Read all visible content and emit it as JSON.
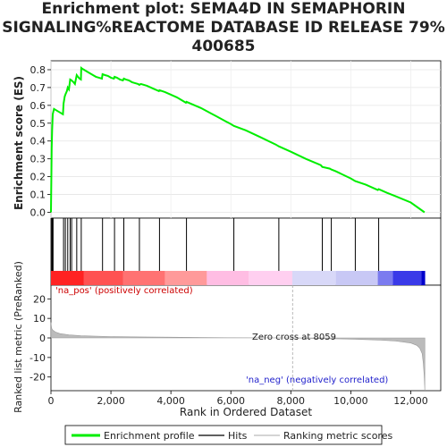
{
  "chart_data": {
    "type": "line",
    "title_lines": [
      "Enrichment plot: SEMA4D IN SEMAPHORIN",
      "SIGNALING%REACTOME DATABASE ID RELEASE 79%",
      "400685"
    ],
    "xlabel": "Rank in Ordered Dataset",
    "top_panel": {
      "ylabel": "Enrichment score (ES)",
      "ylim": [
        0,
        0.85
      ],
      "yticks": [
        "0.0",
        "0.1",
        "0.2",
        "0.3",
        "0.4",
        "0.5",
        "0.6",
        "0.7",
        "0.8"
      ],
      "line_color": "#00ee00",
      "series": [
        {
          "x": [
            0,
            15,
            25,
            40,
            60,
            100,
            150,
            200,
            250,
            300,
            350,
            400,
            420,
            460,
            480,
            530,
            560,
            600,
            640,
            690,
            750,
            800,
            860,
            900,
            950,
            1000,
            1010,
            1050,
            1100,
            1200,
            1300,
            1400,
            1500,
            1600,
            1700,
            1720,
            1800,
            1900,
            2000,
            2100,
            2120,
            2200,
            2300,
            2400,
            2430,
            2500,
            2600,
            2700,
            2800,
            2900,
            2950,
            3000,
            3200,
            3400,
            3600,
            3620,
            3800,
            4000,
            4200,
            4400,
            4500,
            4520,
            4800,
            5000,
            5500,
            6000,
            6100,
            6500,
            7000,
            7500,
            7600,
            8000,
            8500,
            9000,
            9050,
            9300,
            9350,
            9500,
            10000,
            10150,
            10500,
            10900,
            10930,
            11200,
            11500,
            12000,
            12460
          ],
          "y": [
            0.0,
            0.22,
            0.36,
            0.46,
            0.55,
            0.58,
            0.575,
            0.57,
            0.565,
            0.56,
            0.555,
            0.55,
            0.61,
            0.65,
            0.66,
            0.68,
            0.7,
            0.69,
            0.745,
            0.74,
            0.73,
            0.72,
            0.77,
            0.76,
            0.75,
            0.745,
            0.81,
            0.805,
            0.8,
            0.79,
            0.78,
            0.77,
            0.76,
            0.755,
            0.75,
            0.775,
            0.77,
            0.765,
            0.755,
            0.75,
            0.76,
            0.755,
            0.745,
            0.74,
            0.75,
            0.745,
            0.74,
            0.73,
            0.725,
            0.72,
            0.715,
            0.72,
            0.71,
            0.695,
            0.68,
            0.685,
            0.675,
            0.66,
            0.645,
            0.625,
            0.615,
            0.62,
            0.6,
            0.585,
            0.54,
            0.495,
            0.485,
            0.46,
            0.42,
            0.38,
            0.37,
            0.34,
            0.3,
            0.265,
            0.255,
            0.245,
            0.24,
            0.23,
            0.19,
            0.175,
            0.155,
            0.125,
            0.13,
            0.11,
            0.09,
            0.055,
            0.0
          ]
        }
      ]
    },
    "hits_panel": {
      "hit_ranks": [
        30,
        50,
        70,
        420,
        480,
        560,
        640,
        690,
        860,
        1010,
        1720,
        2120,
        2430,
        2950,
        3620,
        4520,
        6100,
        7600,
        9050,
        9350,
        10150,
        10930
      ]
    },
    "bottom_panel": {
      "ylabel": "Ranked list metric (PreRanked)",
      "ylim": [
        -27,
        27
      ],
      "yticks": [
        "20",
        "10",
        "0",
        "-10",
        "-20"
      ],
      "ytick_values": [
        20,
        10,
        0,
        -10,
        -20
      ],
      "metric_profile": {
        "x": [
          0,
          20,
          60,
          150,
          300,
          600,
          1000,
          2000,
          3000,
          4000,
          5000,
          6000,
          7000,
          8059,
          9000,
          10000,
          11000,
          11500,
          12000,
          12200,
          12300,
          12380,
          12420,
          12450,
          12470
        ],
        "y": [
          8,
          5,
          4,
          3,
          2.2,
          1.6,
          1.1,
          0.7,
          0.5,
          0.35,
          0.2,
          0.1,
          0.03,
          0,
          -0.3,
          -0.6,
          -1.1,
          -1.6,
          -2.6,
          -3.8,
          -5.2,
          -8,
          -13,
          -20,
          -27
        ]
      },
      "zero_cross": 8059,
      "zero_cross_label": "Zero cross at 8059",
      "pos_label": "'na_pos' (positively correlated)",
      "neg_label": "'na_neg' (negatively correlated)"
    },
    "xlim": [
      0,
      13000
    ],
    "xticks": [
      "0",
      "2,000",
      "4,000",
      "6,000",
      "8,000",
      "10,000",
      "12,000"
    ],
    "xtick_values": [
      0,
      2000,
      4000,
      6000,
      8000,
      10000,
      12000
    ],
    "heatmap_gradient": [
      {
        "upto": 1100,
        "color": "#ff2222"
      },
      {
        "upto": 2400,
        "color": "#ff5252"
      },
      {
        "upto": 3800,
        "color": "#ff7272"
      },
      {
        "upto": 5200,
        "color": "#ff9a9a"
      },
      {
        "upto": 6600,
        "color": "#ffbde3"
      },
      {
        "upto": 8050,
        "color": "#ffcff0"
      },
      {
        "upto": 9500,
        "color": "#d8d8f8"
      },
      {
        "upto": 10900,
        "color": "#c8c8f5"
      },
      {
        "upto": 11400,
        "color": "#7b7bef"
      },
      {
        "upto": 12350,
        "color": "#3a3ae8"
      },
      {
        "upto": 12480,
        "color": "#0000cc"
      }
    ],
    "legend": [
      {
        "label": "Enrichment profile",
        "color": "#00ee00"
      },
      {
        "label": "Hits",
        "color": "#000000"
      },
      {
        "label": "Ranking metric scores",
        "color": "#bbbbbb"
      }
    ]
  }
}
